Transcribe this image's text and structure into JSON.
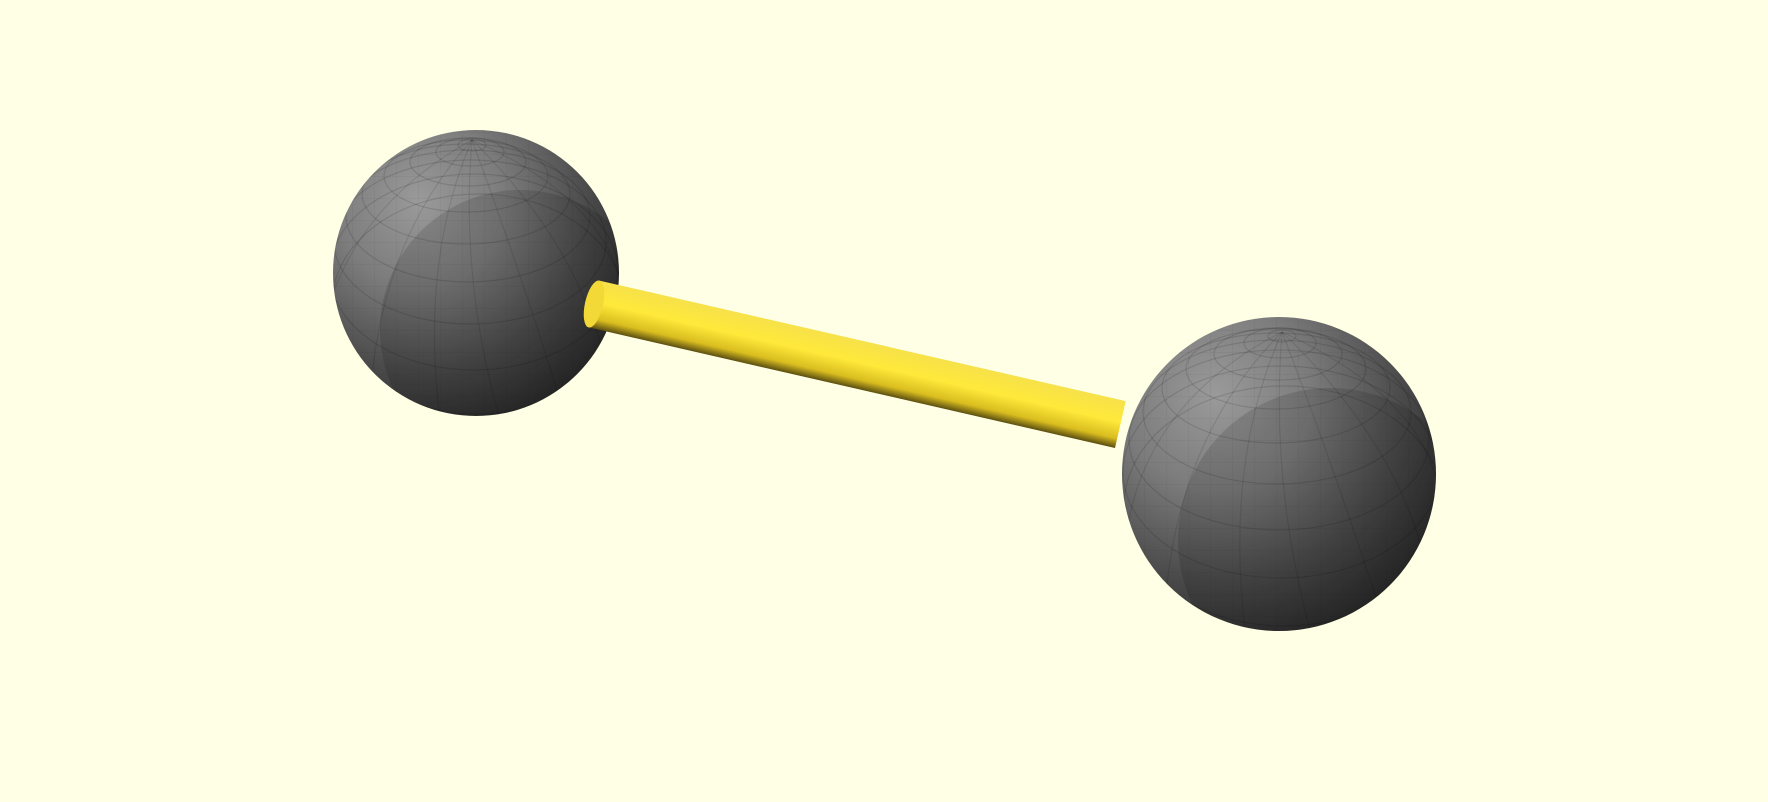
{
  "viewport": {
    "background": "#ffffe5",
    "scene": {
      "objects": [
        {
          "kind": "sphere",
          "name": "left-sphere",
          "color": "#7a7a7a"
        },
        {
          "kind": "cylinder",
          "name": "connecting-rod",
          "color": "#f2d835"
        },
        {
          "kind": "sphere",
          "name": "right-sphere",
          "color": "#7a7a7a"
        }
      ]
    }
  }
}
